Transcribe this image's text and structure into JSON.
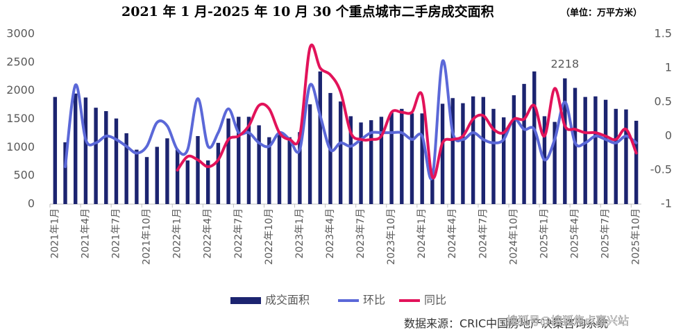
{
  "chart_data": {
    "type": "bar",
    "title": "2021 年 1 月-2025 年 10 月 30 个重点城市二手房成交面积",
    "subtitle": "（单位：万平方米）",
    "source": "数据来源：CRIC中国房地产决策咨询系统",
    "watermark": "搜狐号@搜狐焦点嘉兴站",
    "categories": [
      "2021年1月",
      null,
      null,
      "2021年4月",
      null,
      null,
      "2021年7月",
      null,
      null,
      "2021年10月",
      null,
      null,
      "2022年1月",
      null,
      null,
      "2022年4月",
      null,
      null,
      "2022年7月",
      null,
      null,
      "2022年10月",
      null,
      null,
      "2023年1月",
      null,
      null,
      "2023年4月",
      null,
      null,
      "2023年7月",
      null,
      null,
      "2023年10月",
      null,
      null,
      "2024年1月",
      null,
      null,
      "2024年4月",
      null,
      null,
      "2024年7月",
      null,
      null,
      "2024年10月",
      null,
      null,
      "2025年1月",
      null,
      null,
      "2025年4月",
      null,
      null,
      "2025年7月",
      null,
      null,
      "2025年10月"
    ],
    "series": [
      {
        "name": "成交面积",
        "type": "bar",
        "color": "#1c2470",
        "values": [
          1890,
          1090,
          1950,
          1880,
          1700,
          1640,
          1510,
          1250,
          960,
          830,
          1010,
          1160,
          960,
          770,
          1200,
          770,
          1080,
          1510,
          1540,
          1540,
          1390,
          1180,
          1250,
          1180,
          1270,
          1760,
          2340,
          1960,
          1810,
          1550,
          1440,
          1480,
          1540,
          1610,
          1680,
          1600,
          1600,
          620,
          1770,
          1870,
          1780,
          1900,
          1890,
          1680,
          1530,
          1920,
          2120,
          2340,
          1550,
          1450,
          2218,
          2050,
          1890,
          1900,
          1840,
          1680,
          1670,
          1470
        ],
        "value_labels": [
          null,
          null,
          null,
          null,
          null,
          null,
          null,
          null,
          null,
          null,
          null,
          null,
          null,
          null,
          null,
          null,
          null,
          null,
          null,
          null,
          null,
          null,
          null,
          null,
          null,
          null,
          null,
          null,
          null,
          null,
          null,
          null,
          null,
          null,
          null,
          null,
          null,
          null,
          null,
          null,
          null,
          null,
          null,
          null,
          null,
          null,
          null,
          null,
          null,
          null,
          "2218",
          null,
          null,
          null,
          null,
          null,
          null,
          null
        ]
      },
      {
        "name": "环比",
        "type": "line",
        "axis": "y2",
        "color": "#5b68d8",
        "values": [
          null,
          -0.45,
          0.75,
          -0.05,
          -0.1,
          0.0,
          -0.05,
          -0.15,
          -0.25,
          -0.15,
          0.2,
          0.15,
          -0.2,
          -0.2,
          0.55,
          -0.15,
          0.05,
          0.4,
          0.05,
          0.05,
          -0.1,
          -0.15,
          0.05,
          -0.05,
          -0.2,
          0.75,
          0.3,
          -0.2,
          -0.1,
          -0.15,
          -0.05,
          0.05,
          0.05,
          0.05,
          0.05,
          -0.05,
          0.0,
          -0.6,
          1.1,
          0.05,
          -0.05,
          0.05,
          -0.05,
          -0.1,
          -0.05,
          0.25,
          0.1,
          0.1,
          -0.35,
          -0.05,
          0.5,
          -0.1,
          -0.1,
          0.0,
          -0.05,
          -0.1,
          0.0,
          -0.1
        ]
      },
      {
        "name": "同比",
        "type": "line",
        "axis": "y2",
        "color": "#e2135a",
        "values": [
          null,
          null,
          null,
          null,
          null,
          null,
          null,
          null,
          null,
          null,
          null,
          null,
          -0.5,
          -0.3,
          -0.35,
          -0.45,
          -0.35,
          -0.05,
          0.0,
          0.15,
          0.45,
          0.4,
          0.05,
          -0.05,
          0.0,
          1.3,
          1.0,
          0.9,
          0.65,
          0.05,
          -0.05,
          -0.05,
          0.0,
          0.35,
          0.35,
          0.35,
          0.6,
          -0.6,
          -0.1,
          -0.05,
          0.0,
          0.25,
          0.3,
          0.1,
          0.05,
          0.25,
          0.25,
          0.45,
          0.0,
          0.7,
          0.15,
          0.1,
          0.05,
          0.05,
          0.0,
          -0.05,
          0.1,
          -0.25
        ]
      }
    ],
    "ylim": [
      0,
      3000
    ],
    "yticks": [
      0,
      500,
      1000,
      1500,
      2000,
      2500,
      3000
    ],
    "y2lim": [
      -1,
      1.5
    ],
    "y2ticks": [
      -1,
      -0.5,
      0,
      0.5,
      1,
      1.5
    ],
    "legend": "bottom",
    "grid": false
  }
}
